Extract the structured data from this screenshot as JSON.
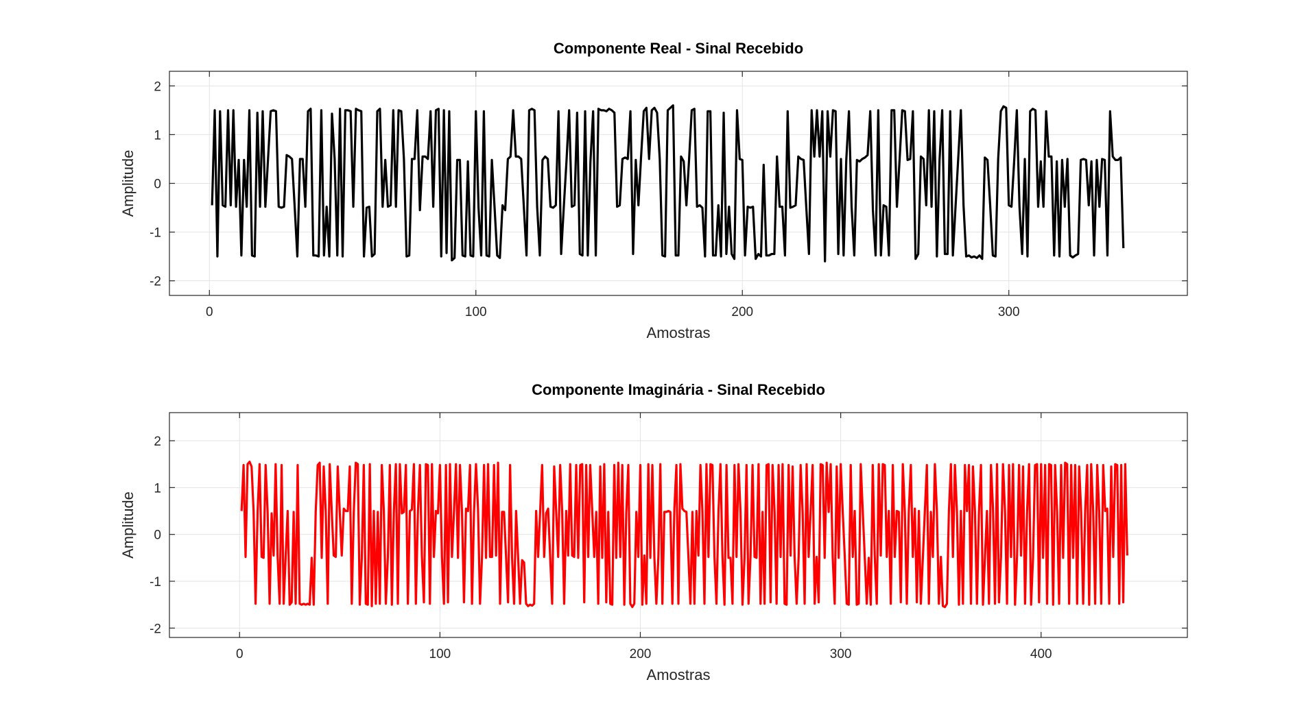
{
  "chart_data": [
    {
      "type": "line",
      "title": "Componente Real - Sinal Recebido",
      "xlabel": "Amostras",
      "ylabel": "Amplitude",
      "xlim": [
        -15,
        367
      ],
      "ylim": [
        -2.3,
        2.3
      ],
      "xticks": [
        0,
        100,
        200,
        300
      ],
      "yticks": [
        -2,
        -1,
        0,
        1,
        2
      ],
      "grid": true,
      "series": [
        {
          "color": "#000000",
          "x_start": 1,
          "values": [
            -0.45,
            1.5,
            -1.5,
            1.48,
            -0.45,
            -0.48,
            1.5,
            -0.45,
            1.5,
            -0.48,
            0.48,
            -1.48,
            0.48,
            -0.48,
            1.5,
            -1.48,
            -1.5,
            1.45,
            -0.48,
            1.48,
            -0.48,
            0.5,
            1.48,
            1.5,
            1.48,
            -0.48,
            -0.5,
            -0.48,
            0.58,
            0.55,
            0.5,
            -0.48,
            -1.5,
            0.5,
            0.5,
            -0.48,
            1.48,
            1.53,
            -1.48,
            -1.48,
            -1.5,
            1.5,
            -1.48,
            -0.48,
            -1.5,
            1.43,
            0.5,
            -1.48,
            1.53,
            -1.5,
            1.5,
            1.5,
            1.48,
            -0.48,
            1.53,
            1.5,
            1.48,
            -1.5,
            -0.5,
            -0.48,
            -1.5,
            -1.45,
            1.48,
            1.53,
            -0.48,
            0.48,
            -0.48,
            -0.45,
            1.5,
            -0.48,
            1.5,
            1.48,
            0.5,
            -1.5,
            -1.48,
            0.5,
            0.5,
            1.5,
            -0.55,
            0.55,
            0.55,
            0.5,
            1.48,
            -0.48,
            1.5,
            1.53,
            -1.5,
            1.5,
            -1.43,
            1.48,
            -1.58,
            -1.53,
            0.48,
            0.48,
            -1.48,
            -1.5,
            0.45,
            -1.48,
            -1.5,
            1.48,
            -0.5,
            -1.48,
            1.48,
            -1.48,
            -1.5,
            0.48,
            -0.48,
            -1.48,
            -1.53,
            -0.45,
            -0.55,
            0.5,
            0.55,
            1.5,
            0.55,
            0.55,
            0.5,
            -0.48,
            -1.48,
            1.5,
            1.53,
            1.5,
            -0.48,
            -1.48,
            0.48,
            0.55,
            0.5,
            -0.48,
            -0.5,
            -0.45,
            1.48,
            -1.45,
            -0.48,
            0.45,
            1.5,
            -0.48,
            -0.45,
            1.45,
            -1.45,
            -1.48,
            1.48,
            -1.48,
            0.45,
            1.48,
            -1.48,
            1.53,
            1.5,
            1.5,
            1.48,
            1.53,
            1.5,
            1.45,
            -0.48,
            -0.45,
            0.5,
            0.53,
            0.5,
            1.48,
            -1.45,
            0.48,
            -0.45,
            0.55,
            1.48,
            1.55,
            0.5,
            1.5,
            1.55,
            1.45,
            0.5,
            -1.48,
            -1.5,
            1.5,
            1.55,
            1.6,
            -1.48,
            -1.48,
            0.55,
            0.45,
            -0.45,
            0.48,
            1.5,
            1.53,
            -0.48,
            -0.45,
            -0.5,
            -1.5,
            1.48,
            1.48,
            -1.48,
            -1.48,
            -0.45,
            -1.5,
            1.45,
            -1.45,
            -0.48,
            -1.45,
            -1.55,
            1.5,
            0.5,
            0.48,
            -1.48,
            -0.48,
            -0.5,
            -0.48,
            -1.55,
            -1.45,
            -1.5,
            0.38,
            -1.48,
            -1.48,
            -1.45,
            -1.45,
            0.55,
            -0.48,
            -0.48,
            -1.48,
            1.48,
            -0.5,
            -0.48,
            -0.45,
            0.55,
            0.5,
            0.48,
            -0.5,
            -1.45,
            1.5,
            0.55,
            1.5,
            0.55,
            1.48,
            -1.6,
            1.48,
            0.55,
            1.5,
            1.48,
            -1.45,
            0.5,
            -1.48,
            0.48,
            1.48,
            -0.48,
            -1.48,
            0.48,
            0.45,
            0.5,
            0.53,
            0.58,
            1.48,
            -0.55,
            -1.48,
            1.5,
            -1.48,
            -0.45,
            -0.48,
            -1.48,
            1.5,
            1.5,
            -0.48,
            0.48,
            1.5,
            1.48,
            0.48,
            0.5,
            1.48,
            -1.55,
            -1.45,
            0.55,
            0.5,
            -0.45,
            1.5,
            -0.48,
            1.48,
            -1.5,
            0.48,
            1.5,
            -1.45,
            -1.45,
            1.48,
            -1.48,
            -0.48,
            0.5,
            1.5,
            -0.45,
            -1.5,
            -1.48,
            -1.52,
            -1.5,
            -1.53,
            -1.48,
            -1.55,
            0.53,
            0.48,
            -0.45,
            -1.48,
            -1.5,
            0.5,
            1.48,
            1.58,
            1.55,
            -0.45,
            -0.48,
            0.45,
            1.5,
            -0.48,
            -1.45,
            0.5,
            -1.5,
            1.48,
            1.53,
            1.5,
            -0.48,
            0.45,
            -0.48,
            1.48,
            0.55,
            0.55,
            -1.48,
            0.45,
            -1.5,
            0.48,
            -0.48,
            0.5,
            -1.48,
            -1.52,
            -1.48,
            -1.45,
            0.48,
            0.5,
            0.48,
            -0.45,
            0.45,
            -1.48,
            0.48,
            -0.48,
            0.5,
            0.48,
            -1.48,
            1.48,
            0.55,
            0.48,
            0.48,
            0.53,
            -1.33
          ]
        }
      ]
    },
    {
      "type": "line",
      "title": "Componente Imaginária - Sinal Recebido",
      "xlabel": "Amostras",
      "ylabel": "Amplitude",
      "xlim": [
        -35,
        473
      ],
      "ylim": [
        -2.2,
        2.6
      ],
      "xticks": [
        0,
        100,
        200,
        300,
        400
      ],
      "yticks": [
        -2,
        -1,
        0,
        1,
        2
      ],
      "grid": true,
      "series": [
        {
          "color": "#ff0000",
          "x_start": 1,
          "values": [
            0.5,
            1.48,
            -0.48,
            1.5,
            1.55,
            1.45,
            0.5,
            -1.48,
            0.48,
            1.5,
            -0.48,
            -0.5,
            1.48,
            0.48,
            -1.48,
            0.45,
            -0.45,
            1.5,
            -0.48,
            -1.48,
            1.48,
            -1.48,
            -0.48,
            0.5,
            -1.5,
            -1.45,
            0.48,
            -1.48,
            1.48,
            -1.48,
            -1.5,
            -1.48,
            -1.5,
            -1.48,
            -1.5,
            -0.5,
            -1.5,
            0.48,
            1.48,
            1.53,
            -0.5,
            1.45,
            0.5,
            -1.48,
            1.5,
            0.5,
            -0.45,
            -0.48,
            1.45,
            0.48,
            -0.45,
            0.55,
            0.5,
            0.5,
            1.45,
            -1.48,
            0.48,
            1.53,
            1.5,
            -1.5,
            -0.5,
            1.48,
            -1.48,
            -1.5,
            1.5,
            -1.53,
            0.5,
            -1.48,
            0.48,
            -1.48,
            1.48,
            0.5,
            -1.48,
            -0.48,
            1.48,
            -1.5,
            0.48,
            1.5,
            -1.48,
            1.5,
            0.45,
            0.48,
            1.48,
            -1.48,
            0.5,
            0.53,
            1.5,
            -1.48,
            0.48,
            1.48,
            -0.48,
            -1.45,
            1.5,
            1.48,
            -1.48,
            1.5,
            -0.48,
            0.5,
            0.45,
            1.48,
            -0.48,
            -1.48,
            1.48,
            -1.45,
            1.5,
            -0.48,
            0.48,
            1.5,
            -0.5,
            1.48,
            0.48,
            -1.45,
            0.55,
            0.5,
            1.48,
            -1.48,
            0.48,
            1.5,
            0.55,
            -1.48,
            -0.48,
            1.48,
            -0.5,
            1.5,
            -0.48,
            -0.48,
            1.48,
            -0.45,
            1.53,
            -1.48,
            0.48,
            0.48,
            -0.48,
            -1.45,
            1.48,
            -0.5,
            -1.48,
            0.5,
            -0.48,
            -1.48,
            -0.55,
            -0.6,
            -1.48,
            -1.53,
            -1.5,
            -1.52,
            -1.48,
            0.5,
            -0.48,
            0.48,
            1.48,
            -0.48,
            0.45,
            0.55,
            -0.48,
            -1.48,
            1.45,
            0.5,
            -0.48,
            1.48,
            0.48,
            -1.48,
            0.5,
            -0.45,
            1.5,
            -0.45,
            -0.48,
            1.48,
            -0.5,
            1.48,
            1.5,
            -1.45,
            1.48,
            -0.48,
            1.48,
            0.5,
            -0.48,
            0.48,
            -1.48,
            1.45,
            -0.5,
            1.5,
            -1.45,
            0.48,
            -1.48,
            -1.5,
            1.48,
            -0.5,
            1.53,
            -0.48,
            1.48,
            -1.5,
            0.48,
            1.48,
            -1.48,
            -1.55,
            -1.48,
            0.48,
            -0.48,
            1.48,
            -1.5,
            -0.45,
            -1.48,
            1.5,
            -0.5,
            1.48,
            -0.48,
            -1.48,
            -0.48,
            1.5,
            -1.48,
            0.48,
            0.48,
            0.5,
            0.48,
            -1.48,
            0.55,
            1.48,
            -1.48,
            1.5,
            0.55,
            0.5,
            0.48,
            -0.48,
            -1.48,
            0.48,
            -1.48,
            0.5,
            -0.45,
            1.48,
            0.48,
            -1.48,
            1.5,
            -0.48,
            1.5,
            1.48,
            -0.48,
            -1.48,
            0.48,
            1.5,
            -0.48,
            -1.5,
            1.48,
            -0.5,
            -0.5,
            -1.48,
            1.48,
            -0.48,
            1.5,
            0.48,
            -1.5,
            -0.5,
            1.48,
            -1.48,
            -0.45,
            1.48,
            -0.48,
            -0.5,
            1.5,
            -1.48,
            0.48,
            -1.48,
            1.48,
            1.5,
            -1.45,
            1.48,
            0.48,
            -1.48,
            1.48,
            -0.48,
            1.5,
            -1.48,
            -1.5,
            1.48,
            -0.45,
            1.45,
            -0.48,
            -1.48,
            -0.5,
            1.48,
            0.48,
            -1.48,
            1.5,
            -0.48,
            0.5,
            1.48,
            -1.48,
            -0.48,
            -1.45,
            1.5,
            1.48,
            -0.5,
            1.53,
            0.48,
            1.5,
            -0.48,
            -1.48,
            1.45,
            -0.5,
            1.5,
            0.5,
            -0.45,
            -1.48,
            -1.5,
            1.48,
            -0.48,
            0.5,
            -1.5,
            -1.48,
            1.5,
            0.5,
            -0.48,
            -1.48,
            -0.5,
            -1.5,
            1.48,
            -0.48,
            -1.48,
            1.5,
            -0.45,
            1.5,
            1.48,
            -0.48,
            0.5,
            -1.48,
            1.48,
            -0.48,
            0.5,
            0.48,
            -1.45,
            1.5,
            0.48,
            -1.48,
            0.5,
            1.48,
            -0.48,
            0.55,
            -1.45,
            0.5,
            -1.48,
            -0.5,
            0.5,
            1.48,
            -1.48,
            0.48,
            -0.48,
            1.5,
            0.5,
            -1.48,
            -0.48,
            -1.53,
            -1.55,
            -1.48,
            0.5,
            1.5,
            -0.48,
            1.48,
            0.48,
            -1.5,
            0.5,
            -1.48,
            1.48,
            0.5,
            1.48,
            -1.48,
            1.45,
            0.48,
            -1.48,
            0.48,
            1.48,
            -1.5,
            -0.48,
            0.5,
            -1.48,
            1.48,
            0.55,
            -1.48,
            1.5,
            -1.45,
            -0.48,
            1.5,
            0.48,
            -1.48,
            1.48,
            -0.48,
            1.5,
            -1.5,
            -0.48,
            1.48,
            -0.45,
            1.45,
            -1.48,
            0.48,
            1.5,
            -1.5,
            -0.48,
            1.48,
            1.5,
            -1.45,
            1.5,
            -0.5,
            1.48,
            -1.48,
            1.5,
            1.48,
            -1.5,
            1.48,
            0.48,
            -1.48,
            1.48,
            -0.5,
            1.53,
            1.5,
            -1.48,
            1.48,
            -0.5,
            1.48,
            -1.48,
            1.45,
            0.48,
            -1.48,
            0.5,
            1.48,
            -1.5,
            1.5,
            0.5,
            -1.48,
            1.48,
            0.48,
            -1.48,
            1.48,
            0.5,
            0.55,
            -1.48,
            1.45,
            -0.48,
            1.5,
            1.48,
            -1.48,
            1.48,
            -1.45,
            1.5,
            -0.45
          ]
        }
      ]
    }
  ]
}
